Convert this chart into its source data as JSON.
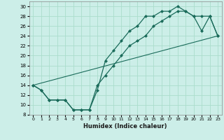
{
  "xlabel": "Humidex (Indice chaleur)",
  "bg_color": "#cceee8",
  "grid_color": "#aaddcc",
  "line_color": "#1a6b5a",
  "xlim": [
    -0.5,
    23.5
  ],
  "ylim": [
    8,
    31
  ],
  "xticks": [
    0,
    1,
    2,
    3,
    4,
    5,
    6,
    7,
    8,
    9,
    10,
    11,
    12,
    13,
    14,
    15,
    16,
    17,
    18,
    19,
    20,
    21,
    22,
    23
  ],
  "yticks": [
    8,
    10,
    12,
    14,
    16,
    18,
    20,
    22,
    24,
    26,
    28,
    30
  ],
  "line1_x": [
    0,
    1,
    2,
    3,
    4,
    5,
    6,
    7,
    8,
    9,
    10,
    11,
    12,
    13,
    14,
    15,
    16,
    17,
    18,
    19,
    20,
    21,
    22,
    23
  ],
  "line1_y": [
    14,
    13,
    11,
    11,
    11,
    9,
    9,
    9,
    13,
    19,
    21,
    23,
    25,
    26,
    28,
    28,
    29,
    29,
    30,
    29,
    28,
    25,
    28,
    24
  ],
  "line2_x": [
    0,
    1,
    2,
    3,
    4,
    5,
    6,
    7,
    8,
    9,
    10,
    11,
    12,
    13,
    14,
    15,
    16,
    17,
    18,
    19,
    20,
    21,
    22,
    23
  ],
  "line2_y": [
    14,
    13,
    11,
    11,
    11,
    9,
    9,
    9,
    14,
    16,
    18,
    20,
    22,
    23,
    24,
    26,
    27,
    28,
    29,
    29,
    28,
    28,
    28,
    24
  ],
  "line3_x": [
    0,
    23
  ],
  "line3_y": [
    14,
    24
  ]
}
